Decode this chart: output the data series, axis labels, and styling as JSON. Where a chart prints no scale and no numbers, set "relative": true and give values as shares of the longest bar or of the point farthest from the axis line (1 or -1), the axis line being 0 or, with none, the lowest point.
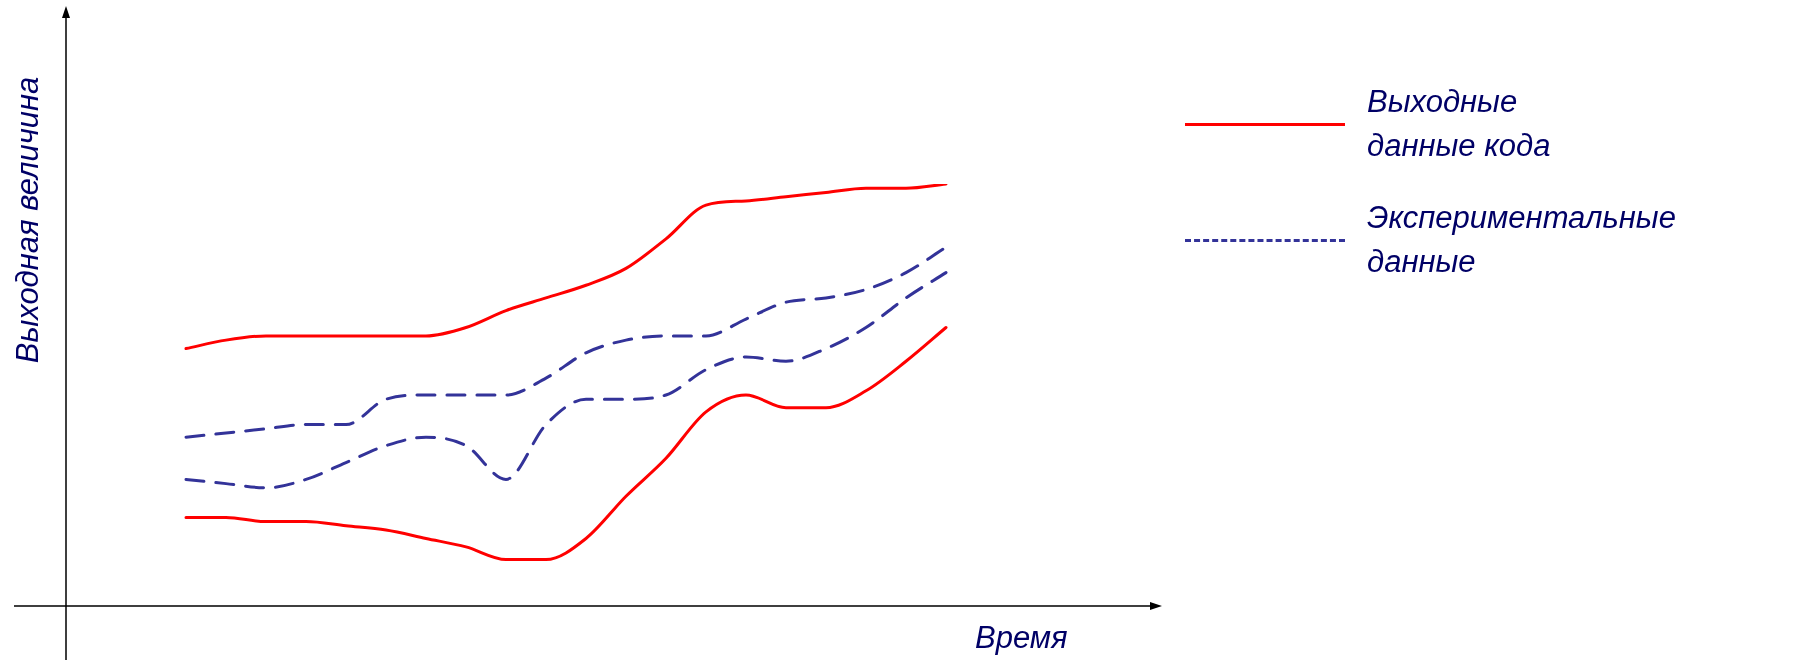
{
  "chart_data": {
    "type": "line",
    "relative": true,
    "xlabel": "Время",
    "ylabel": "Выходная величина",
    "legend": "right",
    "marker": "none",
    "categories": [
      null,
      null,
      null,
      null,
      null,
      null,
      null,
      null,
      null,
      null,
      null,
      null,
      null,
      null,
      null,
      null,
      null,
      null,
      null,
      null,
      null,
      null,
      null,
      null,
      null,
      null,
      null,
      null
    ],
    "series": [
      {
        "name": "Выходные данные кода",
        "color": "#ff0000",
        "line_style": "solid",
        "values": [
          null,
          null,
          null,
          0.61,
          0.63,
          0.64,
          0.64,
          0.64,
          0.64,
          0.64,
          0.66,
          0.7,
          0.73,
          0.76,
          0.8,
          0.87,
          0.95,
          0.96,
          0.97,
          0.98,
          0.99,
          0.99,
          1,
          null,
          null,
          null,
          null,
          null
        ]
      },
      {
        "color": "#ff0000",
        "line_style": "solid",
        "values": [
          null,
          null,
          null,
          0.21,
          0.21,
          0.2,
          0.2,
          0.19,
          0.18,
          0.16,
          0.14,
          0.11,
          0.11,
          0.16,
          0.26,
          0.35,
          0.46,
          0.5,
          0.47,
          0.47,
          0.51,
          0.58,
          0.66,
          null,
          null,
          null,
          null,
          null
        ]
      },
      {
        "name": "Экспериментальные данные",
        "color": "#333399",
        "line_style": "dashed",
        "values": [
          null,
          null,
          null,
          0.4,
          0.41,
          0.42,
          0.43,
          0.43,
          0.49,
          0.5,
          0.5,
          0.5,
          0.54,
          0.6,
          0.63,
          0.64,
          0.64,
          0.68,
          0.72,
          0.73,
          0.75,
          0.79,
          0.85,
          null,
          null,
          null,
          null,
          null
        ]
      },
      {
        "color": "#333399",
        "line_style": "dashed",
        "values": [
          null,
          null,
          null,
          0.3,
          0.29,
          0.28,
          0.3,
          0.34,
          0.38,
          0.4,
          0.38,
          0.3,
          0.43,
          0.49,
          0.49,
          0.5,
          0.56,
          0.59,
          0.58,
          0.61,
          0.66,
          0.73,
          0.79,
          null,
          null,
          null,
          null,
          null
        ]
      }
    ]
  }
}
